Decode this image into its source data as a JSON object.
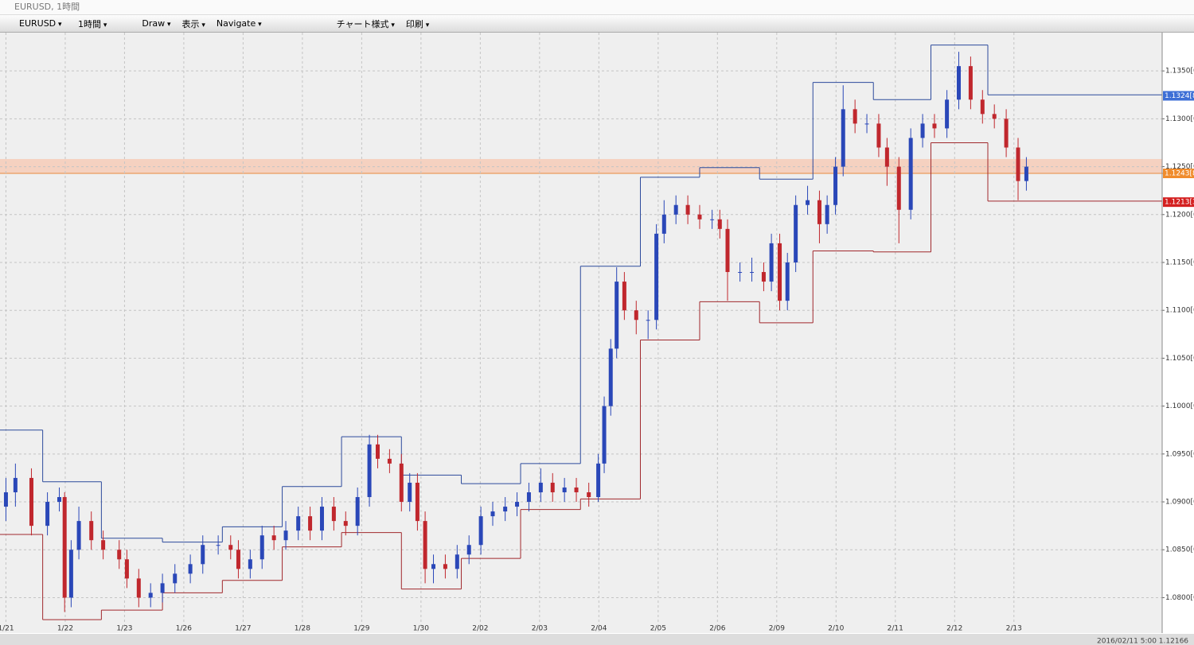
{
  "window": {
    "title": "EURUSD, 1時間"
  },
  "toolbar": {
    "items": [
      "EURUSD",
      "1時間",
      "Draw",
      "表示",
      "Navigate",
      "チャート様式",
      "印刷"
    ]
  },
  "status": "2016/02/11 5:00  1.12166",
  "chart_data": {
    "type": "candlestick",
    "xlim": [
      -0.1,
      19.5
    ],
    "ylim": [
      1.0763,
      1.139
    ],
    "grid": true,
    "up_color": "#2a47b8",
    "down_color": "#c0272d",
    "xticks": [
      {
        "value": 0,
        "label": "1/21"
      },
      {
        "value": 1,
        "label": "1/22"
      },
      {
        "value": 2,
        "label": "1/23"
      },
      {
        "value": 3,
        "label": "1/26"
      },
      {
        "value": 4,
        "label": "1/27"
      },
      {
        "value": 5,
        "label": "1/28"
      },
      {
        "value": 6,
        "label": "1/29"
      },
      {
        "value": 7,
        "label": "1/30"
      },
      {
        "value": 8,
        "label": "2/02"
      },
      {
        "value": 9,
        "label": "2/03"
      },
      {
        "value": 10,
        "label": "2/04"
      },
      {
        "value": 11,
        "label": "2/05"
      },
      {
        "value": 12,
        "label": "2/06"
      },
      {
        "value": 13,
        "label": "2/09"
      },
      {
        "value": 14,
        "label": "2/10"
      },
      {
        "value": 15,
        "label": "2/11"
      },
      {
        "value": 16,
        "label": "2/12"
      },
      {
        "value": 17,
        "label": "2/13"
      }
    ],
    "yticks": [
      {
        "value": 1.08,
        "label": "1.0800[0]"
      },
      {
        "value": 1.085,
        "label": "1.0850[0]"
      },
      {
        "value": 1.09,
        "label": "1.0900[0]"
      },
      {
        "value": 1.095,
        "label": "1.0950[0]"
      },
      {
        "value": 1.1,
        "label": "1.1000[0]"
      },
      {
        "value": 1.105,
        "label": "1.1050[0]"
      },
      {
        "value": 1.11,
        "label": "1.1100[0]"
      },
      {
        "value": 1.115,
        "label": "1.1150[0]"
      },
      {
        "value": 1.12,
        "label": "1.1200[0]"
      },
      {
        "value": 1.125,
        "label": "1.1250[0]"
      },
      {
        "value": 1.13,
        "label": "1.1300[0]"
      },
      {
        "value": 1.135,
        "label": "1.1350[0]"
      }
    ],
    "x": [
      0,
      0.16,
      0.43,
      0.7,
      0.9,
      0.99,
      1.1,
      1.23,
      1.44,
      1.64,
      1.91,
      2.04,
      2.24,
      2.44,
      2.64,
      2.85,
      3.11,
      3.32,
      3.58,
      3.79,
      3.92,
      4.12,
      4.32,
      4.52,
      4.72,
      4.93,
      5.13,
      5.33,
      5.53,
      5.73,
      5.93,
      6.13,
      6.27,
      6.47,
      6.67,
      6.81,
      6.94,
      7.07,
      7.21,
      7.41,
      7.61,
      7.81,
      8.01,
      8.21,
      8.42,
      8.62,
      8.82,
      9.02,
      9.22,
      9.42,
      9.62,
      9.83,
      9.99,
      10.09,
      10.2,
      10.3,
      10.43,
      10.63,
      10.83,
      10.97,
      11.1,
      11.3,
      11.5,
      11.7,
      11.91,
      12.04,
      12.17,
      12.38,
      12.58,
      12.78,
      12.91,
      13.05,
      13.18,
      13.32,
      13.52,
      13.72,
      13.85,
      13.99,
      14.12,
      14.32,
      14.52,
      14.72,
      14.86,
      15.06,
      15.26,
      15.46,
      15.66,
      15.87,
      16.07,
      16.27,
      16.47,
      16.67,
      16.87,
      17.07,
      17.21
    ],
    "ohlc": [
      [
        1.0895,
        1.0925,
        1.088,
        1.091
      ],
      [
        1.091,
        1.094,
        1.0895,
        1.0925
      ],
      [
        1.0925,
        1.0935,
        1.0865,
        1.0875
      ],
      [
        1.0875,
        1.091,
        1.0865,
        1.09
      ],
      [
        1.09,
        1.0915,
        1.089,
        1.0905
      ],
      [
        1.0905,
        1.091,
        1.0785,
        1.08
      ],
      [
        1.08,
        1.086,
        1.079,
        1.085
      ],
      [
        1.085,
        1.0895,
        1.084,
        1.088
      ],
      [
        1.088,
        1.089,
        1.085,
        1.086
      ],
      [
        1.086,
        1.087,
        1.084,
        1.085
      ],
      [
        1.085,
        1.086,
        1.083,
        1.084
      ],
      [
        1.084,
        1.085,
        1.081,
        1.082
      ],
      [
        1.082,
        1.083,
        1.079,
        1.08
      ],
      [
        1.08,
        1.0815,
        1.079,
        1.0805
      ],
      [
        1.0805,
        1.0825,
        1.0795,
        1.0815
      ],
      [
        1.0815,
        1.0835,
        1.0805,
        1.0825
      ],
      [
        1.0825,
        1.0845,
        1.0815,
        1.0835
      ],
      [
        1.0835,
        1.0865,
        1.0825,
        1.0855
      ],
      [
        1.0855,
        1.0865,
        1.0845,
        1.0855
      ],
      [
        1.0855,
        1.0865,
        1.084,
        1.085
      ],
      [
        1.085,
        1.086,
        1.082,
        1.083
      ],
      [
        1.083,
        1.085,
        1.082,
        1.084
      ],
      [
        1.084,
        1.0875,
        1.083,
        1.0865
      ],
      [
        1.0865,
        1.0875,
        1.085,
        1.086
      ],
      [
        1.086,
        1.088,
        1.085,
        1.087
      ],
      [
        1.087,
        1.0895,
        1.086,
        1.0885
      ],
      [
        1.0885,
        1.0895,
        1.086,
        1.087
      ],
      [
        1.087,
        1.0905,
        1.086,
        1.0895
      ],
      [
        1.0895,
        1.0905,
        1.087,
        1.088
      ],
      [
        1.088,
        1.089,
        1.0865,
        1.0875
      ],
      [
        1.0875,
        1.0915,
        1.0865,
        1.0905
      ],
      [
        1.0905,
        1.097,
        1.0895,
        1.096
      ],
      [
        1.096,
        1.097,
        1.0935,
        1.0945
      ],
      [
        1.0945,
        1.0955,
        1.093,
        1.094
      ],
      [
        1.094,
        1.095,
        1.089,
        1.09
      ],
      [
        1.09,
        1.093,
        1.089,
        1.092
      ],
      [
        1.092,
        1.093,
        1.087,
        1.088
      ],
      [
        1.088,
        1.089,
        1.0815,
        1.083
      ],
      [
        1.083,
        1.0845,
        1.0815,
        1.0835
      ],
      [
        1.0835,
        1.0845,
        1.082,
        1.083
      ],
      [
        1.083,
        1.0855,
        1.082,
        1.0845
      ],
      [
        1.0845,
        1.0865,
        1.0835,
        1.0855
      ],
      [
        1.0855,
        1.0895,
        1.0845,
        1.0885
      ],
      [
        1.0885,
        1.09,
        1.0875,
        1.089
      ],
      [
        1.089,
        1.0905,
        1.088,
        1.0895
      ],
      [
        1.0895,
        1.091,
        1.0885,
        1.09
      ],
      [
        1.09,
        1.092,
        1.089,
        1.091
      ],
      [
        1.091,
        1.0935,
        1.09,
        1.092
      ],
      [
        1.092,
        1.093,
        1.09,
        1.091
      ],
      [
        1.091,
        1.0925,
        1.09,
        1.0915
      ],
      [
        1.0915,
        1.0925,
        1.09,
        1.091
      ],
      [
        1.091,
        1.092,
        1.0895,
        1.0905
      ],
      [
        1.0905,
        1.095,
        1.09,
        1.094
      ],
      [
        1.094,
        1.101,
        1.093,
        1.1
      ],
      [
        1.1,
        1.107,
        1.099,
        1.106
      ],
      [
        1.106,
        1.1145,
        1.105,
        1.113
      ],
      [
        1.113,
        1.114,
        1.109,
        1.11
      ],
      [
        1.11,
        1.111,
        1.1075,
        1.109
      ],
      [
        1.109,
        1.11,
        1.107,
        1.109
      ],
      [
        1.109,
        1.119,
        1.108,
        1.118
      ],
      [
        1.118,
        1.1215,
        1.117,
        1.12
      ],
      [
        1.12,
        1.122,
        1.119,
        1.121
      ],
      [
        1.121,
        1.122,
        1.119,
        1.12
      ],
      [
        1.12,
        1.121,
        1.1185,
        1.1195
      ],
      [
        1.1195,
        1.1205,
        1.1185,
        1.1195
      ],
      [
        1.1195,
        1.1205,
        1.1175,
        1.1185
      ],
      [
        1.1185,
        1.1195,
        1.111,
        1.114
      ],
      [
        1.114,
        1.115,
        1.113,
        1.114
      ],
      [
        1.114,
        1.1155,
        1.113,
        1.114
      ],
      [
        1.114,
        1.115,
        1.112,
        1.113
      ],
      [
        1.113,
        1.118,
        1.112,
        1.117
      ],
      [
        1.117,
        1.118,
        1.11,
        1.111
      ],
      [
        1.111,
        1.116,
        1.11,
        1.115
      ],
      [
        1.115,
        1.122,
        1.114,
        1.121
      ],
      [
        1.121,
        1.123,
        1.12,
        1.1215
      ],
      [
        1.1215,
        1.1225,
        1.117,
        1.119
      ],
      [
        1.119,
        1.122,
        1.118,
        1.121
      ],
      [
        1.121,
        1.126,
        1.12,
        1.125
      ],
      [
        1.125,
        1.1335,
        1.124,
        1.131
      ],
      [
        1.131,
        1.132,
        1.1285,
        1.1295
      ],
      [
        1.1295,
        1.1305,
        1.1285,
        1.1295
      ],
      [
        1.1295,
        1.1305,
        1.126,
        1.127
      ],
      [
        1.127,
        1.128,
        1.123,
        1.125
      ],
      [
        1.125,
        1.126,
        1.117,
        1.1205
      ],
      [
        1.1205,
        1.129,
        1.1195,
        1.128
      ],
      [
        1.128,
        1.1305,
        1.127,
        1.1295
      ],
      [
        1.1295,
        1.1305,
        1.128,
        1.129
      ],
      [
        1.129,
        1.133,
        1.128,
        1.132
      ],
      [
        1.132,
        1.137,
        1.131,
        1.1355
      ],
      [
        1.1355,
        1.1365,
        1.131,
        1.132
      ],
      [
        1.132,
        1.133,
        1.1295,
        1.1305
      ],
      [
        1.1305,
        1.1315,
        1.129,
        1.13
      ],
      [
        1.13,
        1.131,
        1.126,
        1.127
      ],
      [
        1.127,
        1.128,
        1.1215,
        1.1235
      ],
      [
        1.1235,
        1.126,
        1.1225,
        1.125
      ]
    ],
    "channel": {
      "upper_color": "#2c4a9c",
      "lower_color": "#a0282c",
      "edges": [
        -0.1,
        0.62,
        1.61,
        2.64,
        3.65,
        4.66,
        5.66,
        6.67,
        7.68,
        8.68,
        9.69,
        10.7,
        11.7,
        12.71,
        13.61,
        14.63,
        15.6,
        16.56,
        19.5
      ],
      "upper": [
        1.0975,
        1.0921,
        1.0862,
        1.0858,
        1.0874,
        1.0916,
        1.0968,
        1.0928,
        1.0919,
        1.094,
        1.1146,
        1.1239,
        1.1249,
        1.1237,
        1.1338,
        1.132,
        1.1377,
        1.1325
      ],
      "lower": [
        1.0866,
        1.0777,
        1.0787,
        1.0805,
        1.0818,
        1.0853,
        1.0868,
        1.0809,
        1.0841,
        1.0892,
        1.0903,
        1.1069,
        1.1109,
        1.1087,
        1.1162,
        1.1161,
        1.1275,
        1.1214
      ]
    },
    "zone": {
      "low": 1.1243,
      "high": 1.1258,
      "color": "#f6c9b4",
      "line_color": "#e88a3c"
    },
    "price_labels": [
      {
        "value": 1.1324,
        "label": "1.1324[8]",
        "color": "#3d6fd6"
      },
      {
        "value": 1.1243,
        "label": "1.1243[8]",
        "color": "#f08c2c"
      },
      {
        "value": 1.1213,
        "label": "1.1213[3]",
        "color": "#d42020"
      }
    ]
  }
}
